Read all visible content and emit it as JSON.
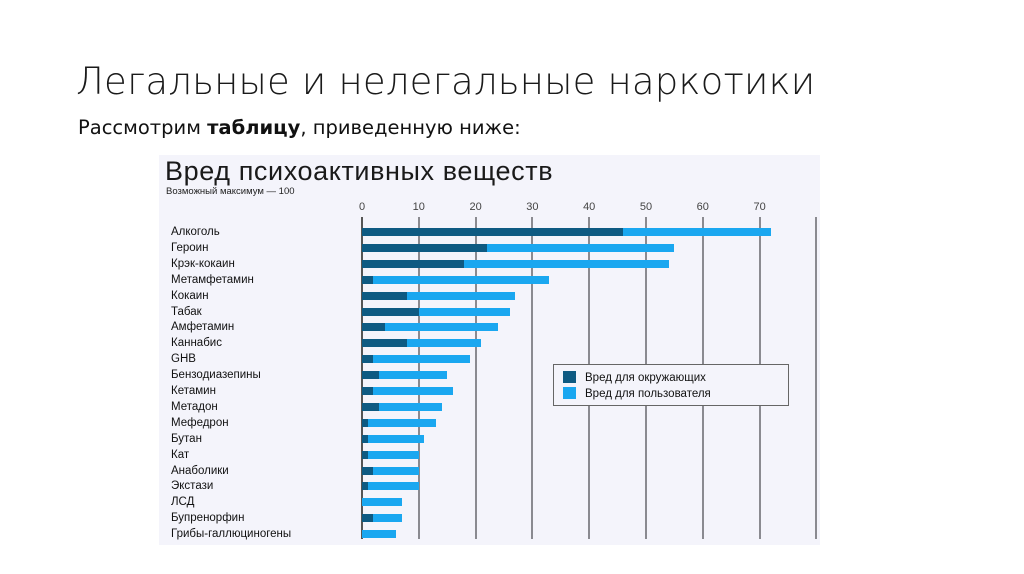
{
  "slide": {
    "title": "Легальные и нелегальные наркотики",
    "subtitle_pre": "Рассмотрим ",
    "subtitle_bold": "таблицу",
    "subtitle_post": ", приведенную ниже:"
  },
  "colors": {
    "harm_to_others": "#0e5a82",
    "harm_to_users": "#1aa7f0",
    "chart_background": "#f4f4fb"
  },
  "chart_data": {
    "type": "bar",
    "orientation": "horizontal",
    "stacked": true,
    "title": "Вред психоактивных веществ",
    "subtitle": "Возможный максимум — 100",
    "xlabel": "",
    "ylabel": "",
    "xlim": [
      0,
      80
    ],
    "x_ticks": [
      0,
      10,
      20,
      30,
      40,
      50,
      60,
      70
    ],
    "grid": true,
    "legend_position": "right-middle",
    "categories": [
      "Алкоголь",
      "Героин",
      "Крэк-кокаин",
      "Метамфетамин",
      "Кокаин",
      "Табак",
      "Амфетамин",
      "Каннабис",
      "GHB",
      "Бензодиазепины",
      "Кетамин",
      "Метадон",
      "Мефедрон",
      "Бутан",
      "Кат",
      "Анаболики",
      "Экстази",
      "ЛСД",
      "Бупренорфин",
      "Грибы-галлюциногены"
    ],
    "series": [
      {
        "name": "Вред для окружающих",
        "color": "#0e5a82",
        "values": [
          46,
          22,
          18,
          2,
          8,
          10,
          4,
          8,
          2,
          3,
          2,
          3,
          1,
          1,
          1,
          2,
          1,
          0,
          2,
          0
        ]
      },
      {
        "name": "Вред для пользователя",
        "color": "#1aa7f0",
        "values": [
          26,
          33,
          36,
          31,
          19,
          16,
          20,
          13,
          17,
          12,
          14,
          11,
          12,
          10,
          9,
          8,
          9,
          7,
          5,
          6
        ]
      }
    ],
    "totals": [
      72,
      55,
      54,
      33,
      27,
      26,
      24,
      21,
      19,
      15,
      16,
      14,
      13,
      11,
      10,
      10,
      10,
      7,
      7,
      6
    ]
  }
}
